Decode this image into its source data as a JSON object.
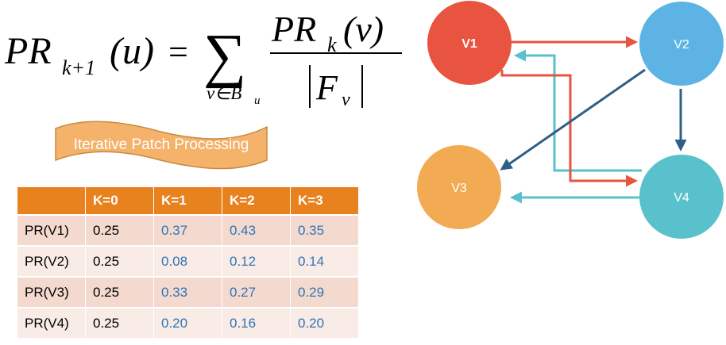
{
  "formula": {
    "lhs_base": "PR",
    "lhs_sub": "k+1",
    "lhs_arg": "(u)",
    "equals": "=",
    "sum": "∑",
    "sum_index": "v∈B",
    "sum_index_sub": "u",
    "num_base": "PR",
    "num_sub": "k",
    "num_arg": "(v)",
    "den_base": "F",
    "den_sub": "v"
  },
  "banner": {
    "label": "Iterative Patch Processing"
  },
  "table": {
    "headers": [
      "",
      "K=0",
      "K=1",
      "K=2",
      "K=3"
    ],
    "rows": [
      {
        "label": "PR(V1)",
        "k0": "0.25",
        "k1": "0.37",
        "k2": "0.43",
        "k3": "0.35"
      },
      {
        "label": "PR(V2)",
        "k0": "0.25",
        "k1": "0.08",
        "k2": "0.12",
        "k3": "0.14"
      },
      {
        "label": "PR(V3)",
        "k0": "0.25",
        "k1": "0.33",
        "k2": "0.27",
        "k3": "0.29"
      },
      {
        "label": "PR(V4)",
        "k0": "0.25",
        "k1": "0.20",
        "k2": "0.16",
        "k3": "0.20"
      }
    ]
  },
  "graph": {
    "nodes": {
      "v1": {
        "label": "V1",
        "color": "#e8543f"
      },
      "v2": {
        "label": "V2",
        "color": "#5db3e4"
      },
      "v3": {
        "label": "V3",
        "color": "#f2ab53"
      },
      "v4": {
        "label": "V4",
        "color": "#59c1cc"
      }
    },
    "edge_colors": {
      "red": "#e8543f",
      "dark_blue": "#2e5f86",
      "teal": "#59c1cc"
    }
  }
}
